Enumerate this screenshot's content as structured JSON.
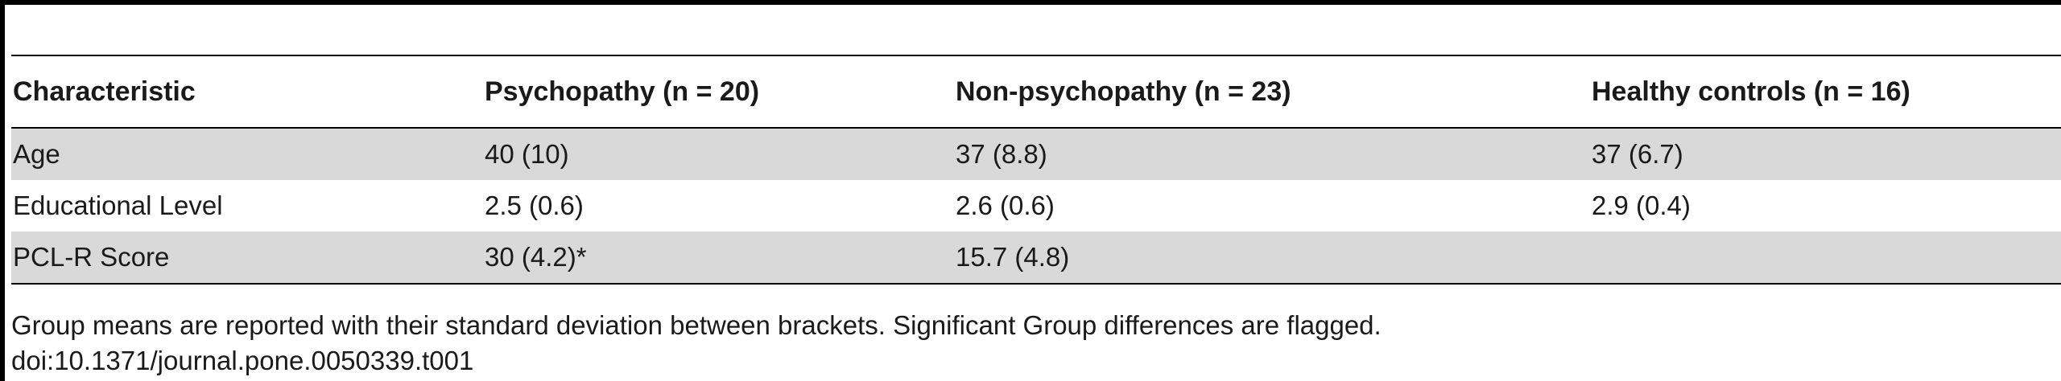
{
  "table": {
    "headers": [
      "Characteristic",
      "Psychopathy (n = 20)",
      "Non-psychopathy (n = 23)",
      "Healthy controls (n = 16)"
    ],
    "rows": [
      [
        "Age",
        "40 (10)",
        "37 (8.8)",
        "37 (6.7)"
      ],
      [
        "Educational Level",
        "2.5 (0.6)",
        "2.6 (0.6)",
        "2.9 (0.4)"
      ],
      [
        "PCL-R Score",
        "30 (4.2)*",
        "15.7 (4.8)",
        ""
      ]
    ],
    "row_shade_color": "#d9d9d9"
  },
  "footnote": {
    "note": "Group means are reported with their standard deviation between brackets. Significant Group differences are flagged.",
    "doi": "doi:10.1371/journal.pone.0050339.t001"
  }
}
